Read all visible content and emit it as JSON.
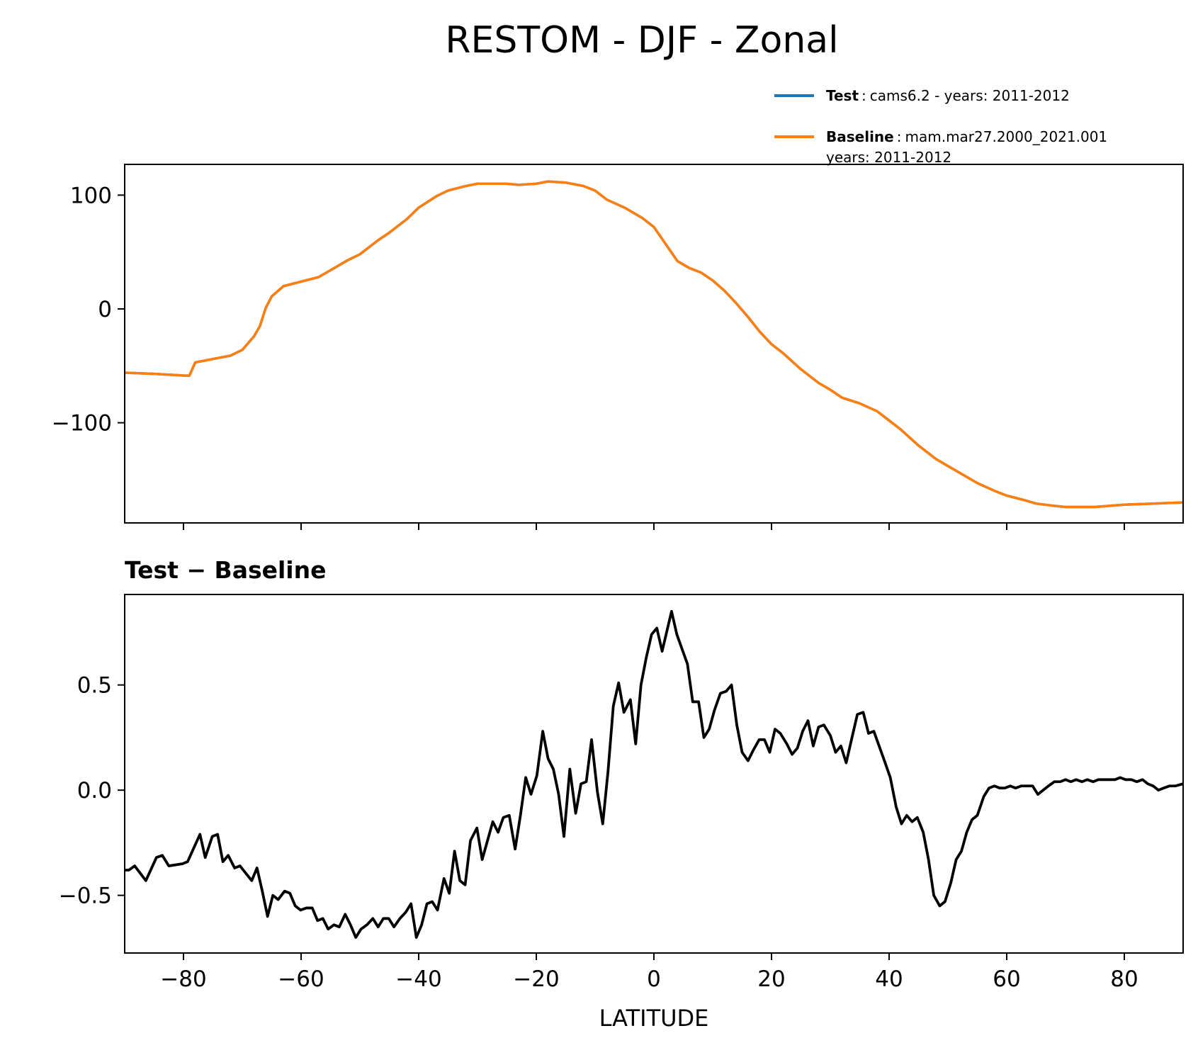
{
  "chart_data": [
    {
      "type": "line",
      "title": "RESTOM - DJF - Zonal",
      "x": [
        -90,
        -85,
        -80,
        -79,
        -78,
        -75,
        -72,
        -70,
        -68,
        -67,
        -66,
        -65,
        -63,
        -60,
        -57,
        -55,
        -52,
        -50,
        -47,
        -45,
        -42,
        -40,
        -37,
        -35,
        -32,
        -30,
        -25,
        -23,
        -20,
        -18,
        -15,
        -12,
        -10,
        -8,
        -5,
        -2,
        0,
        2,
        4,
        6,
        8,
        10,
        12,
        14,
        16,
        18,
        20,
        22,
        25,
        28,
        30,
        32,
        35,
        38,
        40,
        42,
        45,
        48,
        50,
        53,
        55,
        58,
        60,
        63,
        65,
        68,
        70,
        75,
        80,
        85,
        90
      ],
      "series": [
        {
          "name": "Test",
          "label": [
            "cams6.2 - years: 2011-2012"
          ],
          "color": "#1f77b4",
          "values": [
            -56,
            -57,
            -58.5,
            -58.6,
            -47,
            -44,
            -41,
            -36,
            -24,
            -15,
            1,
            11,
            20,
            24,
            28,
            34,
            43,
            48,
            60,
            67,
            79,
            89,
            99,
            104,
            108,
            110,
            110,
            109,
            110,
            112,
            111,
            108,
            104,
            96,
            89,
            80,
            72,
            57,
            42,
            36,
            32,
            25,
            16,
            5,
            -7,
            -20,
            -31,
            -39,
            -53,
            -65,
            -71,
            -78,
            -83,
            -90,
            -98,
            -106,
            -120,
            -132,
            -138,
            -147,
            -153,
            -160,
            -164,
            -168,
            -171,
            -173,
            -174,
            -174,
            -172,
            -171,
            -170
          ]
        },
        {
          "name": "Baseline",
          "label": [
            "mam.mar27.2000_2021.001",
            "years: 2011-2012"
          ],
          "color": "#ff7f0e",
          "values": [
            -56,
            -57,
            -58.5,
            -58.6,
            -47,
            -44,
            -41,
            -36,
            -24,
            -15,
            1,
            11,
            20,
            24,
            28,
            34,
            43,
            48,
            60,
            67,
            79,
            89,
            99,
            104,
            108,
            110,
            110,
            109,
            110,
            112,
            111,
            108,
            104,
            96,
            89,
            80,
            72,
            57,
            42,
            36,
            32,
            25,
            16,
            5,
            -7,
            -20,
            -31,
            -39,
            -53,
            -65,
            -71,
            -78,
            -83,
            -90,
            -98,
            -106,
            -120,
            -132,
            -138,
            -147,
            -153,
            -160,
            -164,
            -168,
            -171,
            -173,
            -174,
            -174,
            -172,
            -171,
            -170
          ]
        }
      ],
      "xlim": [
        -90,
        90
      ],
      "xticks": [
        -80,
        -60,
        -40,
        -20,
        0,
        20,
        40,
        60,
        80
      ],
      "xtick_labels": false,
      "ylim": [
        -188,
        127
      ],
      "yticks": [
        {
          "value": -100,
          "label": "−100"
        },
        0,
        100
      ],
      "legend": "upper right"
    },
    {
      "type": "line",
      "title": "Test − Baseline",
      "xlabel": "LATITUDE",
      "color": "#000000",
      "x": [
        -90,
        -89.3,
        -88.3,
        -86.4,
        -84.6,
        -83.6,
        -82.5,
        -80.2,
        -79.3,
        -77.2,
        -76.3,
        -75.1,
        -74.2,
        -73.3,
        -72.4,
        -71.3,
        -70.4,
        -68.4,
        -67.5,
        -66.6,
        -65.7,
        -64.8,
        -63.9,
        -62.8,
        -61.9,
        -61,
        -60.1,
        -59.1,
        -58.1,
        -57.2,
        -56.3,
        -55.4,
        -54.4,
        -53.5,
        -52.5,
        -51.6,
        -50.7,
        -49.8,
        -48.8,
        -47.8,
        -46.9,
        -46,
        -45.1,
        -44.2,
        -43.2,
        -42.2,
        -41.3,
        -40.4,
        -39.5,
        -38.6,
        -37.7,
        -36.8,
        -35.7,
        -34.8,
        -33.9,
        -33,
        -32.1,
        -31.2,
        -30.1,
        -29.2,
        -28.3,
        -27.4,
        -26.5,
        -25.6,
        -24.6,
        -23.6,
        -22.7,
        -21.8,
        -20.9,
        -19.9,
        -18.9,
        -18,
        -17.1,
        -16.2,
        -15.3,
        -14.3,
        -13.3,
        -12.4,
        -11.5,
        -10.6,
        -9.6,
        -8.7,
        -7.8,
        -6.9,
        -6,
        -5.1,
        -4,
        -3.1,
        -2.2,
        -1.3,
        -0.4,
        0.5,
        1.4,
        3,
        3.9,
        4.8,
        5.7,
        6.6,
        7.6,
        8.5,
        9.4,
        10.3,
        11.3,
        12.3,
        13.2,
        14.1,
        15,
        16,
        16.9,
        17.9,
        18.8,
        19.7,
        20.6,
        21.5,
        22.6,
        23.5,
        24.4,
        25.3,
        26.2,
        27.1,
        28,
        28.9,
        30,
        30.9,
        31.8,
        32.7,
        33.6,
        34.6,
        35.6,
        36.5,
        37.4,
        38.3,
        39.2,
        40.2,
        41.2,
        42.1,
        43,
        43.9,
        44.8,
        45.8,
        46.7,
        47.6,
        48.6,
        49.5,
        50.5,
        51.4,
        52.3,
        53.2,
        54.1,
        55,
        56.1,
        57,
        57.9,
        58.8,
        59.7,
        60.6,
        61.5,
        62.5,
        63.5,
        64.4,
        65.3,
        66.2,
        67.1,
        68.1,
        69.1,
        70,
        70.9,
        71.8,
        72.8,
        73.7,
        74.7,
        75.6,
        76.5,
        77.4,
        78.4,
        79.3,
        80.2,
        81.2,
        82.1,
        83.1,
        84,
        84.9,
        85.8,
        86.7,
        87.7,
        88.7,
        90
      ],
      "values": [
        -0.38,
        -0.38,
        -0.36,
        -0.43,
        -0.32,
        -0.31,
        -0.36,
        -0.35,
        -0.34,
        -0.21,
        -0.32,
        -0.22,
        -0.21,
        -0.34,
        -0.31,
        -0.37,
        -0.36,
        -0.43,
        -0.37,
        -0.48,
        -0.6,
        -0.5,
        -0.52,
        -0.48,
        -0.49,
        -0.55,
        -0.57,
        -0.56,
        -0.56,
        -0.62,
        -0.61,
        -0.66,
        -0.64,
        -0.65,
        -0.59,
        -0.64,
        -0.7,
        -0.66,
        -0.64,
        -0.61,
        -0.65,
        -0.61,
        -0.61,
        -0.65,
        -0.61,
        -0.58,
        -0.54,
        -0.7,
        -0.64,
        -0.54,
        -0.53,
        -0.57,
        -0.42,
        -0.49,
        -0.29,
        -0.43,
        -0.45,
        -0.24,
        -0.18,
        -0.33,
        -0.24,
        -0.15,
        -0.2,
        -0.13,
        -0.12,
        -0.28,
        -0.12,
        0.06,
        -0.02,
        0.07,
        0.28,
        0.15,
        0.1,
        -0.02,
        -0.22,
        0.1,
        -0.11,
        0.03,
        0.04,
        0.24,
        -0.01,
        -0.16,
        0.09,
        0.4,
        0.51,
        0.37,
        0.43,
        0.22,
        0.5,
        0.63,
        0.74,
        0.77,
        0.66,
        0.85,
        0.74,
        0.67,
        0.6,
        0.42,
        0.42,
        0.25,
        0.29,
        0.38,
        0.46,
        0.47,
        0.5,
        0.31,
        0.18,
        0.14,
        0.19,
        0.24,
        0.24,
        0.18,
        0.29,
        0.27,
        0.22,
        0.17,
        0.2,
        0.28,
        0.33,
        0.21,
        0.3,
        0.31,
        0.26,
        0.18,
        0.21,
        0.13,
        0.24,
        0.36,
        0.37,
        0.27,
        0.28,
        0.21,
        0.14,
        0.06,
        -0.08,
        -0.16,
        -0.12,
        -0.15,
        -0.13,
        -0.2,
        -0.33,
        -0.5,
        -0.55,
        -0.53,
        -0.44,
        -0.33,
        -0.29,
        -0.2,
        -0.14,
        -0.12,
        -0.03,
        0.01,
        0.02,
        0.01,
        0.01,
        0.02,
        0.01,
        0.02,
        0.02,
        0.02,
        -0.02,
        0,
        0.02,
        0.04,
        0.04,
        0.05,
        0.04,
        0.05,
        0.04,
        0.05,
        0.04,
        0.05,
        0.05,
        0.05,
        0.05,
        0.06,
        0.05,
        0.05,
        0.04,
        0.05,
        0.03,
        0.02,
        0,
        0.01,
        0.02,
        0.02,
        0.03
      ],
      "xlim": [
        -90,
        90
      ],
      "xticks": [
        {
          "value": -80,
          "label": "−80"
        },
        {
          "value": -60,
          "label": "−60"
        },
        {
          "value": -40,
          "label": "−40"
        },
        {
          "value": -20,
          "label": "−20"
        },
        0,
        20,
        40,
        60,
        80
      ],
      "ylim": [
        -0.774,
        0.93
      ],
      "yticks": [
        {
          "value": -0.5,
          "label": "−0.5"
        },
        {
          "value": 0,
          "label": "0.0"
        },
        0.5
      ]
    }
  ]
}
